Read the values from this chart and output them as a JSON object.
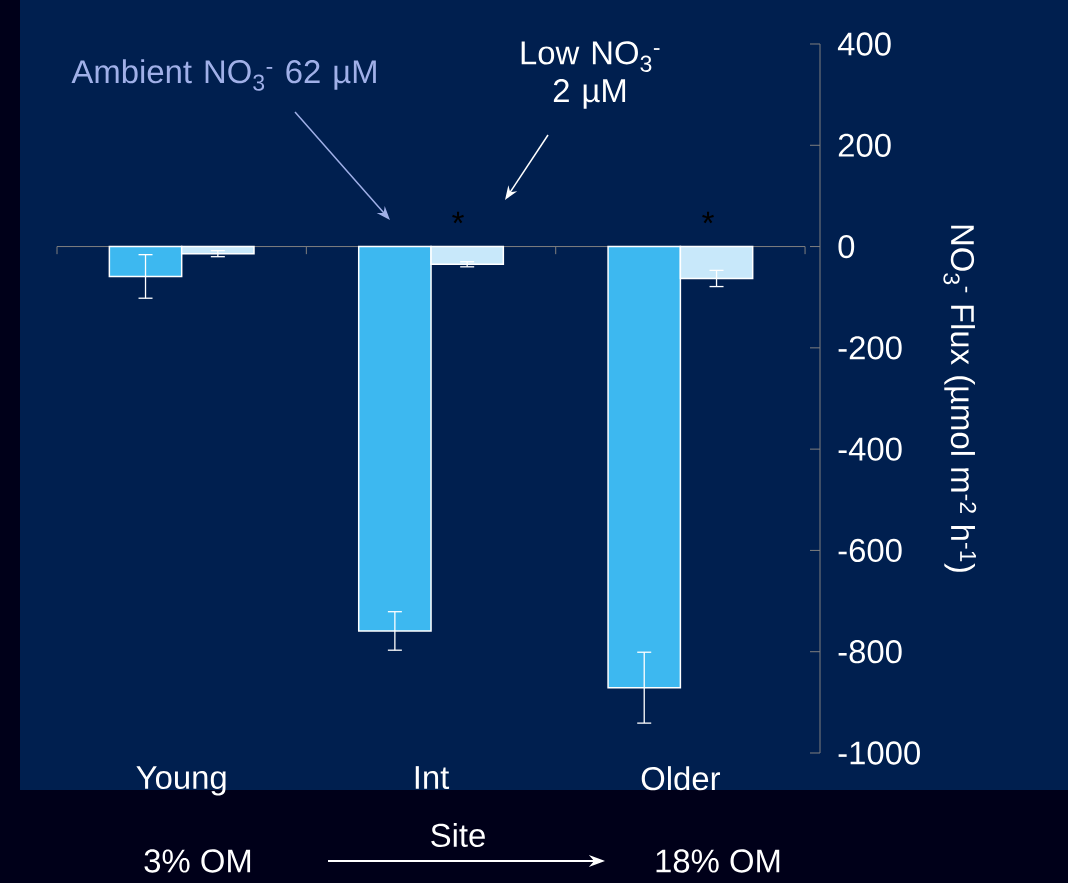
{
  "chart_data": {
    "type": "bar",
    "categories": [
      "Young",
      "Int",
      "Older"
    ],
    "series": [
      {
        "color": "#3db8f0",
        "values": [
          -59,
          -759,
          -871
        ],
        "errors": [
          43,
          38,
          70
        ]
      },
      {
        "color": "#c8e8fa",
        "values": [
          -14,
          -35,
          -63
        ],
        "errors": [
          6,
          5,
          16
        ]
      }
    ],
    "ylim": [
      -1000,
      400
    ],
    "yticks": [
      -1000,
      -800,
      -600,
      -400,
      -200,
      0,
      200,
      400
    ],
    "ylabel": "NO$_{3}$$^{-}$ Flux (µmol m$^{-2}$ h$^{-1}$)",
    "annotations": [
      "Ambient NO$_{3}$$^{-}$ 62 µM",
      "Low NO$_{3}$$^{-}$ 2 µM",
      "*",
      "*",
      "3% OM",
      "Site",
      "18% OM"
    ]
  }
}
